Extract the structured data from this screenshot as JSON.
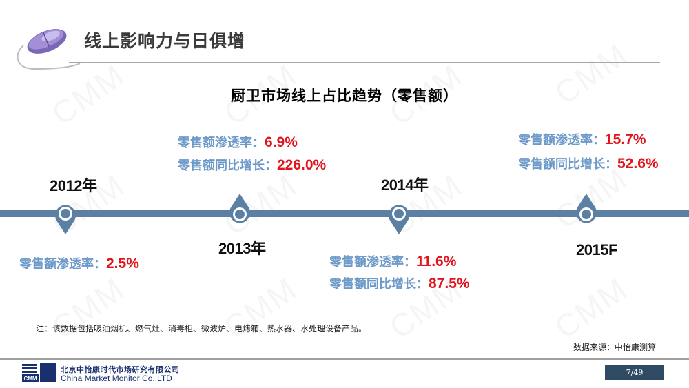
{
  "header": {
    "title": "线上影响力与日俱增"
  },
  "chart_title": "厨卫市场线上占比趋势（零售额）",
  "timeline": {
    "y2012": {
      "year": "2012年",
      "penetration_label": "零售额渗透率：",
      "penetration_value": "2.5%"
    },
    "y2013": {
      "year": "2013年",
      "penetration_label": "零售额渗透率：",
      "penetration_value": "6.9%",
      "growth_label": "零售额同比增长：",
      "growth_value": "226.0%"
    },
    "y2014": {
      "year": "2014年",
      "penetration_label": "零售额渗透率：",
      "penetration_value": "11.6%",
      "growth_label": "零售额同比增长：",
      "growth_value": "87.5%"
    },
    "y2015": {
      "year": "2015F",
      "penetration_label": "零售额渗透率：",
      "penetration_value": "15.7%",
      "growth_label": "零售额同比增长：",
      "growth_value": "52.6%"
    }
  },
  "note": "注：该数据包括吸油烟机、燃气灶、消毒柜、微波炉、电烤箱、热水器、水处理设备产品。",
  "source": "数据来源：中怡康测算",
  "footer": {
    "company_cn": "北京中怡康时代市场研究有限公司",
    "company_en": "China Market Monitor Co.,LTD",
    "logo_text": "CMM",
    "page": "7/49"
  },
  "watermark": "CMM",
  "colors": {
    "timeline": "#5c80a3",
    "label_blue": "#6e9ac9",
    "value_red": "#e2141c",
    "badge": "#2e4b63"
  }
}
